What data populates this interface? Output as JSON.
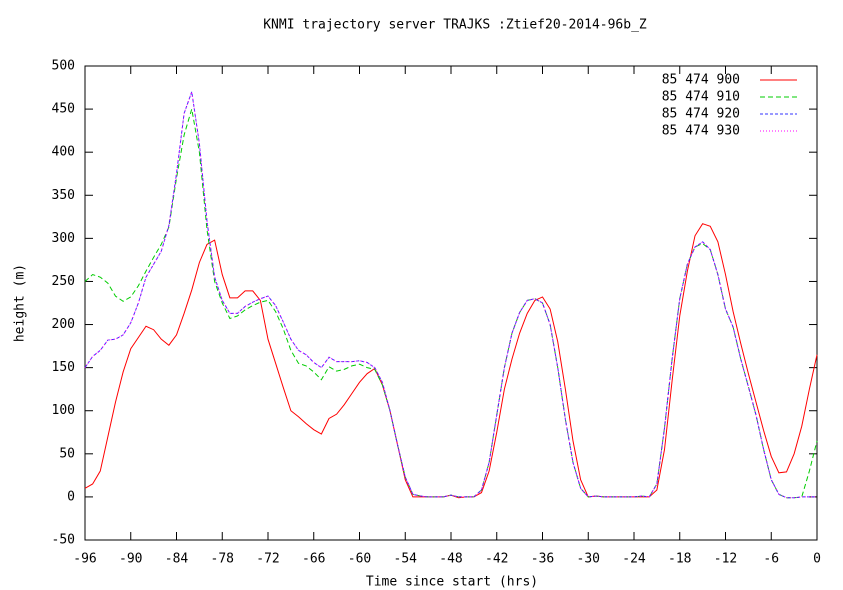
{
  "chart_data": {
    "type": "line",
    "title": "KNMI trajectory server TRAJKS :Ztief20-2014-96b_Z",
    "x_label": "Time since start (hrs)",
    "y_label": "height (m)",
    "xlim": [
      -96,
      0
    ],
    "ylim": [
      -50,
      500
    ],
    "xticks": [
      -96,
      -90,
      -84,
      -78,
      -72,
      -66,
      -60,
      -54,
      -48,
      -42,
      -36,
      -30,
      -24,
      -18,
      -12,
      -6,
      0
    ],
    "yticks": [
      -50,
      0,
      50,
      100,
      150,
      200,
      250,
      300,
      350,
      400,
      450,
      500
    ],
    "legend": "top-right",
    "x": [
      -96,
      -95,
      -94,
      -93,
      -92,
      -91,
      -90,
      -89,
      -88,
      -87,
      -86,
      -85,
      -84,
      -83,
      -82,
      -81,
      -80,
      -79,
      -78,
      -77,
      -76,
      -75,
      -74,
      -73,
      -72,
      -71,
      -70,
      -69,
      -68,
      -67,
      -66,
      -65,
      -64,
      -63,
      -62,
      -61,
      -60,
      -59,
      -58,
      -57,
      -56,
      -55,
      -54,
      -53,
      -52,
      -51,
      -50,
      -49,
      -48,
      -47,
      -46,
      -45,
      -44,
      -43,
      -42,
      -41,
      -40,
      -39,
      -38,
      -37,
      -36,
      -35,
      -34,
      -33,
      -32,
      -31,
      -30,
      -29,
      -28,
      -27,
      -26,
      -25,
      -24,
      -23,
      -22,
      -21,
      -20,
      -19,
      -18,
      -17,
      -16,
      -15,
      -14,
      -13,
      -12,
      -11,
      -10,
      -9,
      -8,
      -7,
      -6,
      -5,
      -4,
      -3,
      -2,
      -1,
      0
    ],
    "series": [
      {
        "name": "85 474 900",
        "color": "#ff0000",
        "values": [
          10,
          15,
          30,
          70,
          110,
          145,
          172,
          185,
          198,
          194,
          183,
          176,
          188,
          213,
          240,
          272,
          293,
          298,
          258,
          231,
          231,
          239,
          239,
          228,
          183,
          155,
          127,
          100,
          93,
          85,
          78,
          73,
          91,
          96,
          107,
          120,
          133,
          143,
          149,
          130,
          100,
          60,
          20,
          0,
          0,
          0,
          0,
          0,
          2,
          -1,
          0,
          0,
          5,
          30,
          75,
          125,
          160,
          190,
          213,
          228,
          232,
          218,
          180,
          125,
          65,
          20,
          0,
          1,
          0,
          0,
          0,
          0,
          0,
          0,
          0,
          8,
          55,
          135,
          210,
          262,
          303,
          317,
          314,
          296,
          258,
          215,
          178,
          143,
          110,
          77,
          47,
          28,
          29,
          50,
          82,
          125,
          165
        ]
      },
      {
        "name": "85 474 910",
        "color": "#00cc00",
        "values": [
          250,
          258,
          255,
          248,
          233,
          227,
          232,
          245,
          262,
          278,
          293,
          313,
          370,
          420,
          450,
          400,
          310,
          250,
          225,
          207,
          210,
          217,
          222,
          226,
          228,
          215,
          195,
          170,
          155,
          152,
          145,
          136,
          151,
          146,
          148,
          152,
          154,
          150,
          148,
          130,
          100,
          60,
          23,
          3,
          1,
          0,
          0,
          0,
          2,
          0,
          0,
          0,
          8,
          40,
          95,
          150,
          190,
          214,
          228,
          230,
          225,
          200,
          150,
          90,
          40,
          10,
          0,
          1,
          0,
          0,
          0,
          0,
          0,
          1,
          0,
          15,
          80,
          160,
          230,
          270,
          290,
          294,
          287,
          258,
          218,
          197,
          160,
          128,
          95,
          55,
          20,
          3,
          -1,
          -1,
          0,
          30,
          65
        ]
      },
      {
        "name": "85 474 920",
        "color": "#3333ff",
        "values": [
          150,
          163,
          170,
          182,
          183,
          188,
          202,
          225,
          255,
          270,
          285,
          315,
          375,
          445,
          470,
          410,
          320,
          255,
          228,
          213,
          213,
          221,
          226,
          230,
          233,
          222,
          203,
          183,
          170,
          165,
          156,
          150,
          162,
          157,
          157,
          157,
          158,
          156,
          150,
          133,
          100,
          60,
          23,
          3,
          1,
          0,
          0,
          0,
          2,
          0,
          0,
          0,
          8,
          40,
          95,
          150,
          190,
          214,
          228,
          230,
          225,
          200,
          150,
          90,
          40,
          10,
          0,
          1,
          0,
          0,
          0,
          0,
          0,
          1,
          0,
          15,
          80,
          160,
          230,
          270,
          290,
          296,
          287,
          258,
          218,
          197,
          160,
          128,
          95,
          55,
          20,
          3,
          -1,
          -1,
          0,
          0,
          0
        ]
      },
      {
        "name": "85 474 930",
        "color": "#ff00ff",
        "values": [
          150,
          163,
          170,
          182,
          183,
          188,
          202,
          225,
          255,
          270,
          285,
          315,
          375,
          445,
          470,
          410,
          320,
          255,
          228,
          213,
          213,
          221,
          226,
          230,
          233,
          222,
          203,
          183,
          170,
          165,
          156,
          150,
          162,
          157,
          157,
          157,
          158,
          156,
          150,
          133,
          100,
          60,
          23,
          3,
          1,
          0,
          0,
          0,
          2,
          0,
          0,
          0,
          8,
          40,
          95,
          150,
          190,
          214,
          228,
          230,
          225,
          200,
          150,
          90,
          40,
          10,
          0,
          1,
          0,
          0,
          0,
          0,
          0,
          1,
          0,
          15,
          80,
          160,
          230,
          270,
          290,
          296,
          287,
          258,
          218,
          197,
          160,
          128,
          95,
          55,
          20,
          3,
          -1,
          -1,
          0,
          0,
          0
        ]
      }
    ]
  }
}
